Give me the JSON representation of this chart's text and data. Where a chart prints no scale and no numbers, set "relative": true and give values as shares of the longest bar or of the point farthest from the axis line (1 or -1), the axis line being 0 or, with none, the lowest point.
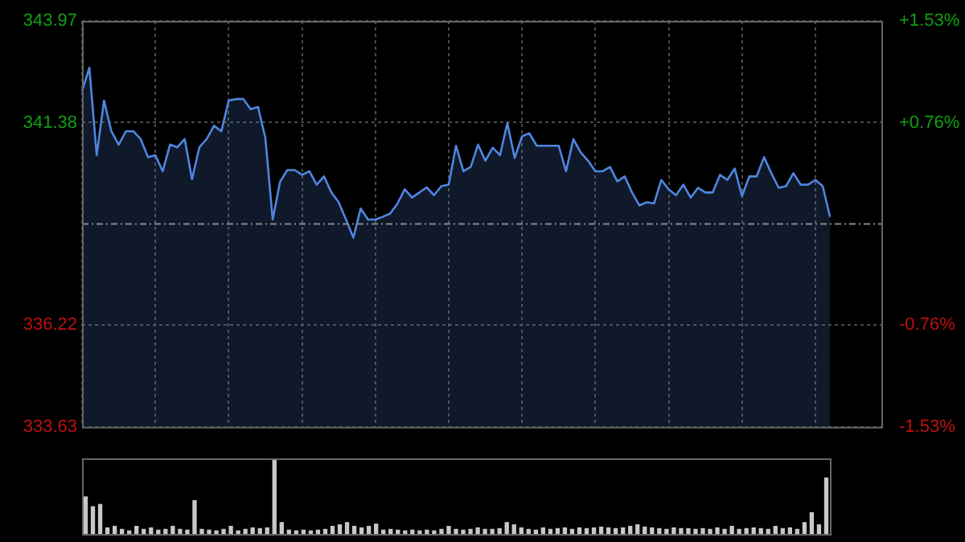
{
  "chart_data": [
    {
      "type": "area",
      "categories": [
        null,
        null,
        null,
        null,
        null,
        null,
        null,
        null,
        null,
        null,
        null,
        null,
        null,
        null,
        null,
        null,
        null,
        null,
        null,
        null,
        null,
        null,
        null,
        null,
        null,
        null,
        null,
        null,
        null,
        null,
        null,
        null,
        null,
        null,
        null,
        null,
        null,
        null,
        null,
        null,
        null,
        null,
        null,
        null,
        null,
        null,
        null,
        null,
        null,
        null,
        null,
        null,
        null,
        null,
        null,
        null,
        null,
        null,
        null,
        null,
        null,
        null,
        null,
        null,
        null,
        null,
        null,
        null,
        null,
        null,
        null,
        null,
        null,
        null,
        null,
        null,
        null,
        null,
        null,
        null,
        null,
        null,
        null,
        null,
        null,
        null,
        null,
        null,
        null,
        null,
        null,
        null,
        null,
        null,
        null,
        null,
        null,
        null,
        null,
        null,
        null,
        null,
        null,
        null,
        null,
        null,
        null,
        null,
        null,
        null
      ],
      "series": [
        {
          "color": "#4f86e0",
          "values": [
            342.18,
            342.78,
            340.55,
            341.94,
            341.16,
            340.82,
            341.16,
            341.16,
            340.96,
            340.5,
            340.55,
            340.14,
            340.82,
            340.75,
            340.96,
            339.94,
            340.75,
            340.96,
            341.3,
            341.16,
            341.94,
            341.98,
            341.98,
            341.72,
            341.78,
            340.99,
            338.91,
            339.87,
            340.17,
            340.17,
            340.05,
            340.14,
            339.8,
            340.01,
            339.6,
            339.35,
            338.91,
            338.45,
            339.19,
            338.91,
            338.91,
            338.98,
            339.06,
            339.31,
            339.68,
            339.47,
            339.6,
            339.73,
            339.53,
            339.76,
            339.8,
            340.79,
            340.14,
            340.25,
            340.82,
            340.41,
            340.74,
            340.55,
            341.37,
            340.48,
            341.03,
            341.11,
            340.79,
            340.79,
            340.79,
            340.79,
            340.14,
            340.96,
            340.62,
            340.41,
            340.14,
            340.14,
            340.25,
            339.88,
            340.01,
            339.6,
            339.27,
            339.35,
            339.32,
            339.92,
            339.68,
            339.53,
            339.8,
            339.47,
            339.72,
            339.6,
            339.6,
            340.05,
            339.92,
            340.21,
            339.51,
            340.01,
            340.01,
            340.5,
            340.09,
            339.72,
            339.76,
            340.09,
            339.8,
            339.8,
            339.92,
            339.76,
            338.98,
            null,
            null,
            null,
            null,
            null,
            null,
            null
          ]
        }
      ],
      "ylim": [
        333.63,
        343.97
      ],
      "yticks": [
        333.63,
        336.22,
        341.38,
        343.97
      ],
      "y2lim": [
        -1.53,
        1.53
      ],
      "y2ticks": [
        {
          "value": -1.53,
          "label": "-1.53%"
        },
        {
          "value": -0.76,
          "label": "-0.76%"
        },
        {
          "value": 0.76,
          "label": "+0.76%"
        },
        {
          "value": 1.53,
          "label": "+1.53%"
        }
      ],
      "ref_lines": [
        {
          "axis": "y",
          "value": 338.8,
          "line_style": "dashed"
        }
      ],
      "grid": true,
      "legend": false
    },
    {
      "type": "bar",
      "relative": true,
      "color": "#c8c8c8",
      "categories": [
        null,
        null,
        null,
        null,
        null,
        null,
        null,
        null,
        null,
        null,
        null,
        null,
        null,
        null,
        null,
        null,
        null,
        null,
        null,
        null,
        null,
        null,
        null,
        null,
        null,
        null,
        null,
        null,
        null,
        null,
        null,
        null,
        null,
        null,
        null,
        null,
        null,
        null,
        null,
        null,
        null,
        null,
        null,
        null,
        null,
        null,
        null,
        null,
        null,
        null,
        null,
        null,
        null,
        null,
        null,
        null,
        null,
        null,
        null,
        null,
        null,
        null,
        null,
        null,
        null,
        null,
        null,
        null,
        null,
        null,
        null,
        null,
        null,
        null,
        null,
        null,
        null,
        null,
        null,
        null,
        null,
        null,
        null,
        null,
        null,
        null,
        null,
        null,
        null,
        null,
        null,
        null,
        null,
        null,
        null,
        null,
        null,
        null,
        null,
        null,
        null,
        null,
        null
      ],
      "values": [
        0.49,
        0.36,
        0.39,
        0.08,
        0.1,
        0.06,
        0.04,
        0.1,
        0.06,
        0.08,
        0.05,
        0.06,
        0.1,
        0.06,
        0.05,
        0.44,
        0.06,
        0.05,
        0.04,
        0.06,
        0.1,
        0.04,
        0.06,
        0.08,
        0.07,
        0.08,
        1,
        0.15,
        0.05,
        0.04,
        0.05,
        0.04,
        0.05,
        0.06,
        0.1,
        0.12,
        0.15,
        0.1,
        0.08,
        0.1,
        0.13,
        0.05,
        0.06,
        0.05,
        0.04,
        0.05,
        0.04,
        0.05,
        0.04,
        0.06,
        0.1,
        0.06,
        0.05,
        0.06,
        0.08,
        0.06,
        0.06,
        0.07,
        0.15,
        0.12,
        0.08,
        0.06,
        0.05,
        0.08,
        0.06,
        0.07,
        0.08,
        0.06,
        0.08,
        0.07,
        0.08,
        0.09,
        0.08,
        0.07,
        0.08,
        0.1,
        0.12,
        0.09,
        0.08,
        0.07,
        0.06,
        0.08,
        0.07,
        0.07,
        0.06,
        0.07,
        0.06,
        0.08,
        0.06,
        0.1,
        0.06,
        0.07,
        0.08,
        0.07,
        0.06,
        0.1,
        0.07,
        0.08,
        0.06,
        0.15,
        0.28,
        0.12,
        0.74
      ]
    }
  ]
}
